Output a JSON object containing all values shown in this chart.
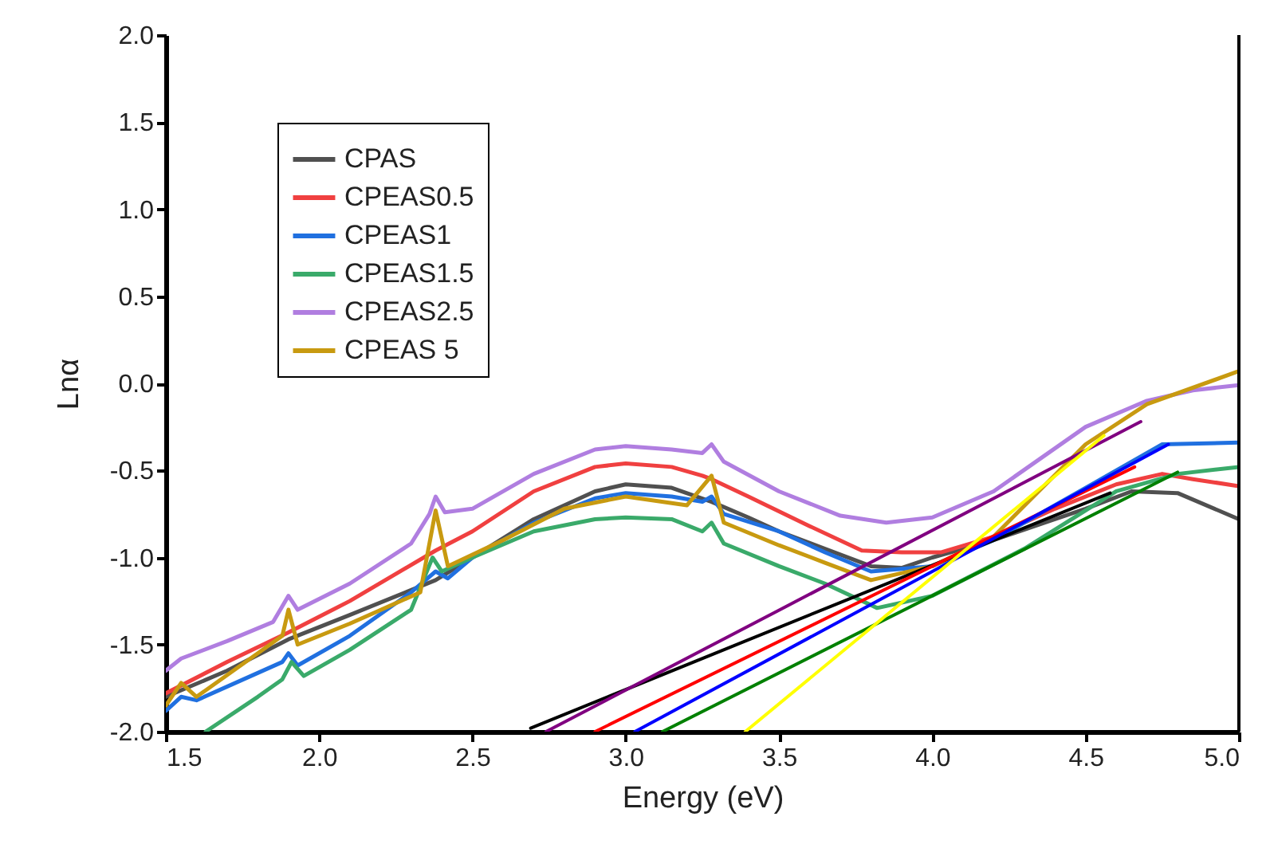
{
  "chart_data": {
    "type": "line",
    "xlabel": "Energy (eV)",
    "ylabel": "Lnα",
    "xlim": [
      1.5,
      5.0
    ],
    "xticks": [
      {
        "value": 1.5,
        "label": "1.5"
      },
      {
        "value": 2,
        "label": "2.0"
      },
      {
        "value": 2.5,
        "label": "2.5"
      },
      {
        "value": 3,
        "label": "3.0"
      },
      {
        "value": 3.5,
        "label": "3.5"
      },
      {
        "value": 4,
        "label": "4.0"
      },
      {
        "value": 4.5,
        "label": "4.5"
      },
      {
        "value": 5,
        "label": "5.0"
      }
    ],
    "ylim": [
      -2.0,
      2.0
    ],
    "yticks": [
      {
        "value": -2,
        "label": "-2.0"
      },
      {
        "value": -1.5,
        "label": "-1.5"
      },
      {
        "value": -1,
        "label": "-1.0"
      },
      {
        "value": -0.5,
        "label": "-0.5"
      },
      {
        "value": 0,
        "label": "0.0"
      },
      {
        "value": 0.5,
        "label": "0.5"
      },
      {
        "value": 1,
        "label": "1.0"
      },
      {
        "value": 1.5,
        "label": "1.5"
      },
      {
        "value": 2,
        "label": "2.0"
      }
    ],
    "grid": false,
    "legend": "top left",
    "marker": "none",
    "line_style": "solid",
    "series": [
      {
        "name": "CPAS",
        "color": "#505050",
        "x": [
          1.5,
          1.7,
          1.9,
          2.1,
          2.38,
          2.5,
          2.7,
          2.9,
          3.0,
          3.15,
          3.28,
          3.4,
          3.5,
          3.65,
          3.8,
          3.9,
          4.0,
          4.2,
          4.4,
          4.5,
          4.65,
          4.8,
          5.0
        ],
        "values": [
          -1.8,
          -1.65,
          -1.47,
          -1.33,
          -1.13,
          -1.0,
          -0.78,
          -0.62,
          -0.58,
          -0.6,
          -0.68,
          -0.77,
          -0.85,
          -0.95,
          -1.05,
          -1.06,
          -1.0,
          -0.9,
          -0.78,
          -0.72,
          -0.62,
          -0.63,
          -0.78
        ]
      },
      {
        "name": "CPEAS0.5",
        "color": "#f04040",
        "x": [
          1.5,
          1.7,
          1.9,
          2.1,
          2.38,
          2.5,
          2.7,
          2.9,
          3.0,
          3.15,
          3.25,
          3.28,
          3.4,
          3.6,
          3.77,
          3.9,
          4.03,
          4.2,
          4.4,
          4.6,
          4.75,
          4.85,
          5.0
        ],
        "values": [
          -1.78,
          -1.6,
          -1.43,
          -1.25,
          -0.96,
          -0.85,
          -0.62,
          -0.48,
          -0.46,
          -0.48,
          -0.53,
          -0.55,
          -0.65,
          -0.82,
          -0.96,
          -0.97,
          -0.97,
          -0.88,
          -0.72,
          -0.58,
          -0.52,
          -0.55,
          -0.59
        ]
      },
      {
        "name": "CPEAS1",
        "color": "#2070e0",
        "x": [
          1.5,
          1.55,
          1.6,
          1.88,
          1.9,
          1.93,
          2.1,
          2.3,
          2.38,
          2.42,
          2.5,
          2.7,
          2.9,
          3.0,
          3.15,
          3.25,
          3.28,
          3.32,
          3.5,
          3.65,
          3.8,
          4.0,
          4.2,
          4.4,
          4.5,
          4.75,
          5.0
        ],
        "values": [
          -1.88,
          -1.8,
          -1.82,
          -1.6,
          -1.55,
          -1.62,
          -1.45,
          -1.2,
          -1.08,
          -1.12,
          -1.0,
          -0.8,
          -0.66,
          -0.63,
          -0.65,
          -0.68,
          -0.65,
          -0.75,
          -0.85,
          -0.97,
          -1.08,
          -1.05,
          -0.9,
          -0.7,
          -0.6,
          -0.35,
          -0.34
        ]
      },
      {
        "name": "CPEAS1.5",
        "color": "#3aaa6a",
        "x": [
          1.63,
          1.8,
          1.88,
          1.91,
          1.95,
          2.1,
          2.3,
          2.37,
          2.4,
          2.5,
          2.7,
          2.9,
          3.0,
          3.15,
          3.25,
          3.28,
          3.32,
          3.5,
          3.65,
          3.82,
          4.0,
          4.3,
          4.6,
          4.8,
          5.0
        ],
        "values": [
          -2.0,
          -1.8,
          -1.7,
          -1.6,
          -1.68,
          -1.53,
          -1.3,
          -1.0,
          -1.08,
          -1.0,
          -0.85,
          -0.78,
          -0.77,
          -0.78,
          -0.85,
          -0.8,
          -0.92,
          -1.05,
          -1.15,
          -1.29,
          -1.22,
          -0.95,
          -0.62,
          -0.52,
          -0.48
        ]
      },
      {
        "name": "CPEAS2.5",
        "color": "#b07ee0",
        "x": [
          1.5,
          1.55,
          1.7,
          1.85,
          1.9,
          1.93,
          2.1,
          2.3,
          2.36,
          2.38,
          2.41,
          2.5,
          2.7,
          2.9,
          3.0,
          3.15,
          3.25,
          3.28,
          3.32,
          3.5,
          3.7,
          3.85,
          4.0,
          4.2,
          4.5,
          4.7,
          4.85,
          5.0
        ],
        "values": [
          -1.65,
          -1.58,
          -1.48,
          -1.37,
          -1.22,
          -1.3,
          -1.15,
          -0.92,
          -0.75,
          -0.65,
          -0.74,
          -0.72,
          -0.52,
          -0.38,
          -0.36,
          -0.38,
          -0.4,
          -0.35,
          -0.45,
          -0.62,
          -0.76,
          -0.8,
          -0.77,
          -0.62,
          -0.25,
          -0.1,
          -0.04,
          -0.01
        ]
      },
      {
        "name": "CPEAS 5",
        "color": "#c89a10",
        "x": [
          1.5,
          1.55,
          1.6,
          1.88,
          1.9,
          1.93,
          2.1,
          2.33,
          2.38,
          2.42,
          2.6,
          2.8,
          3.0,
          3.2,
          3.28,
          3.32,
          3.5,
          3.65,
          3.8,
          4.0,
          4.2,
          4.5,
          4.7,
          5.0
        ],
        "values": [
          -1.85,
          -1.72,
          -1.8,
          -1.45,
          -1.3,
          -1.5,
          -1.38,
          -1.2,
          -0.73,
          -1.05,
          -0.9,
          -0.72,
          -0.65,
          -0.7,
          -0.53,
          -0.8,
          -0.93,
          -1.03,
          -1.13,
          -1.05,
          -0.88,
          -0.35,
          -0.12,
          0.07
        ]
      },
      {
        "color": "#000000",
        "x": [
          2.69,
          4.58
        ],
        "values": [
          -1.98,
          -0.63
        ]
      },
      {
        "color": "#800080",
        "x": [
          2.74,
          4.68
        ],
        "values": [
          -2.0,
          -0.22
        ]
      },
      {
        "color": "#ff0000",
        "x": [
          2.9,
          4.66
        ],
        "values": [
          -2.0,
          -0.48
        ]
      },
      {
        "color": "#0000ff",
        "x": [
          3.03,
          4.77
        ],
        "values": [
          -2.0,
          -0.35
        ]
      },
      {
        "color": "#008000",
        "x": [
          3.12,
          4.8
        ],
        "values": [
          -2.0,
          -0.51
        ]
      },
      {
        "color": "#ffff00",
        "x": [
          3.39,
          4.56
        ],
        "values": [
          -2.0,
          -0.3
        ]
      }
    ]
  }
}
